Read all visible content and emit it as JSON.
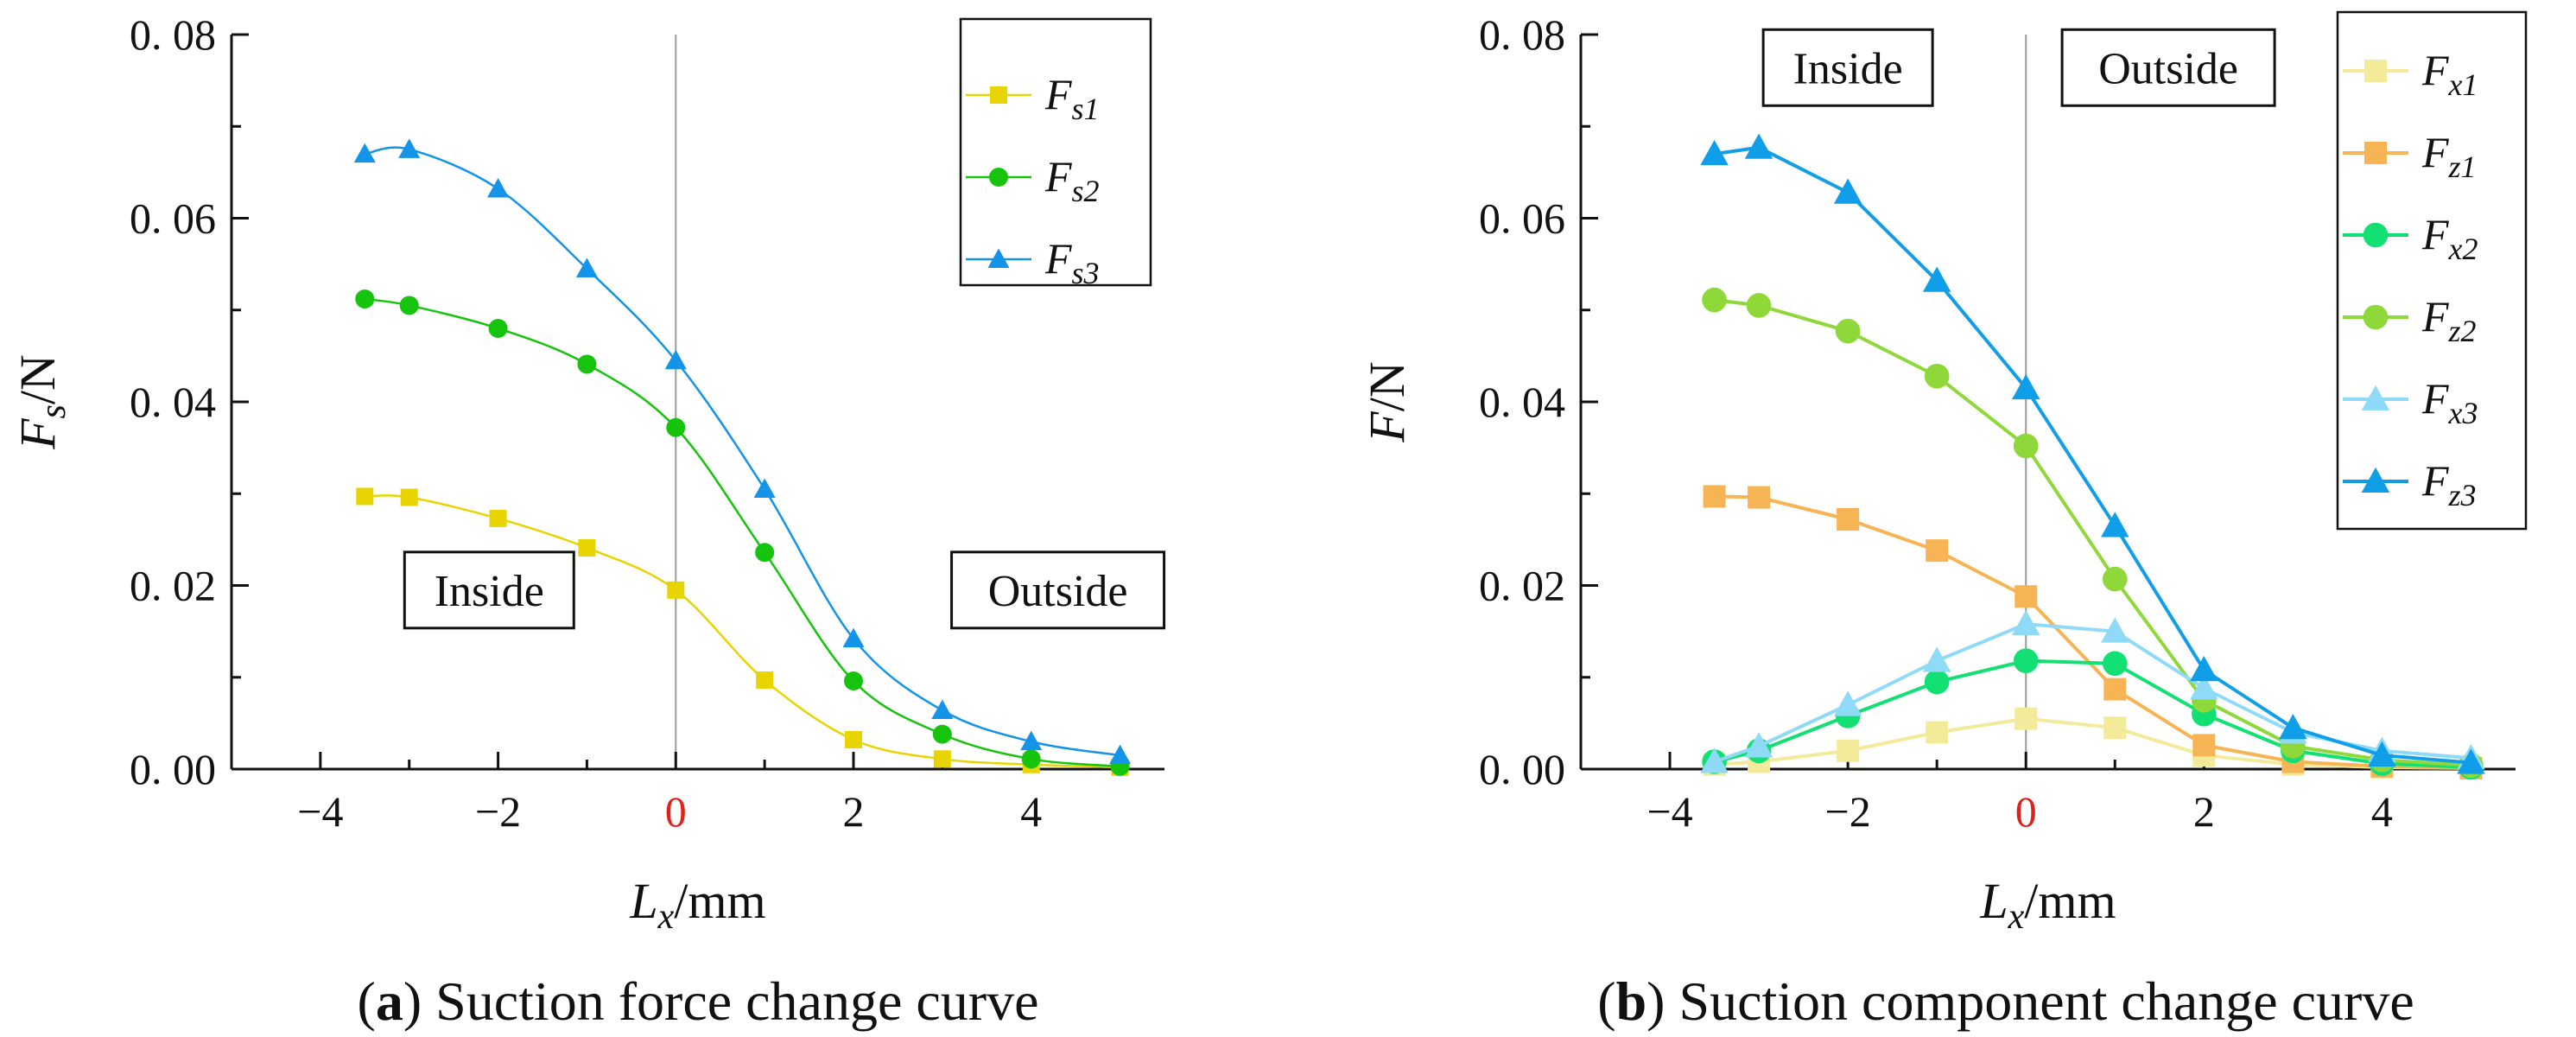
{
  "chart_data": [
    {
      "type": "line",
      "caption_letter": "a",
      "caption_text": " Suction force change curve",
      "xlabel_main": "L",
      "xlabel_sub": "x",
      "xlabel_unit": "/mm",
      "ylabel_main": "F",
      "ylabel_sub": "s",
      "ylabel_unit": "/N",
      "xlim": [
        -5,
        5.5
      ],
      "ylim": [
        0,
        0.08
      ],
      "xticks": [
        -4,
        -2,
        0,
        2,
        4
      ],
      "xtick_labels": [
        "−4",
        "−2",
        "0",
        "2",
        "4"
      ],
      "highlight_tick": "0",
      "highlight_color": "#e0201b",
      "yticks": [
        0,
        0.02,
        0.04,
        0.06,
        0.08
      ],
      "ytick_labels": [
        "0. 00",
        "0. 02",
        "0. 04",
        "0. 06",
        "0. 08"
      ],
      "vertical_line_x": 0,
      "smooth": true,
      "legend_position": "top-right",
      "annotations": [
        {
          "text": "Inside",
          "x": -2.1,
          "y": 0.0195
        },
        {
          "text": "Outside",
          "x": 4.3,
          "y": 0.0195
        }
      ],
      "series": [
        {
          "name": "F",
          "sub": "s1",
          "color": "#e8d400",
          "marker": "square",
          "x": [
            -3.5,
            -3,
            -2,
            -1,
            0,
            1,
            2,
            3,
            4,
            5
          ],
          "y": [
            0.0297,
            0.0296,
            0.0273,
            0.0241,
            0.0195,
            0.0097,
            0.0032,
            0.0011,
            0.0005,
            0.0002
          ]
        },
        {
          "name": "F",
          "sub": "s2",
          "color": "#16c40e",
          "marker": "circle",
          "x": [
            -3.5,
            -3,
            -2,
            -1,
            0,
            1,
            2,
            3,
            4,
            5
          ],
          "y": [
            0.0512,
            0.0505,
            0.048,
            0.0441,
            0.0372,
            0.0236,
            0.0096,
            0.0038,
            0.0011,
            0.0003
          ]
        },
        {
          "name": "F",
          "sub": "s3",
          "color": "#1494e8",
          "marker": "triangle",
          "x": [
            -3.5,
            -3,
            -2,
            -1,
            0,
            1,
            2,
            3,
            4,
            5
          ],
          "y": [
            0.067,
            0.0675,
            0.0632,
            0.0545,
            0.0445,
            0.0305,
            0.0142,
            0.0064,
            0.003,
            0.0015
          ]
        }
      ]
    },
    {
      "type": "line",
      "caption_letter": "b",
      "caption_text": " Suction component change curve",
      "xlabel_main": "L",
      "xlabel_sub": "x",
      "xlabel_unit": "/mm",
      "ylabel_main": "F",
      "ylabel_sub": "",
      "ylabel_unit": "/N",
      "xlim": [
        -5,
        5.5
      ],
      "ylim": [
        0,
        0.08
      ],
      "xticks": [
        -4,
        -2,
        0,
        2,
        4
      ],
      "xtick_labels": [
        "−4",
        "−2",
        "0",
        "2",
        "4"
      ],
      "highlight_tick": "0",
      "highlight_color": "#e0201b",
      "yticks": [
        0,
        0.02,
        0.04,
        0.06,
        0.08
      ],
      "ytick_labels": [
        "0. 00",
        "0. 02",
        "0. 04",
        "0. 06",
        "0. 08"
      ],
      "vertical_line_x": 0,
      "smooth": false,
      "legend_position": "top-right",
      "annotations": [
        {
          "text": "Inside",
          "x": -2.0,
          "y": 0.0764
        },
        {
          "text": "Outside",
          "x": 1.6,
          "y": 0.0764
        }
      ],
      "series": [
        {
          "name": "F",
          "sub": "x1",
          "color": "#f4eb9a",
          "marker": "square",
          "x": [
            -3.5,
            -3,
            -2,
            -1,
            0,
            1,
            2,
            3,
            4,
            5
          ],
          "y": [
            0.0005,
            0.0008,
            0.002,
            0.004,
            0.0055,
            0.0045,
            0.0015,
            0.0005,
            0.0002,
            0.0001
          ]
        },
        {
          "name": "F",
          "sub": "z1",
          "color": "#f7b454",
          "marker": "square",
          "x": [
            -3.5,
            -3,
            -2,
            -1,
            0,
            1,
            2,
            3,
            4,
            5
          ],
          "y": [
            0.0297,
            0.0296,
            0.0272,
            0.0238,
            0.0188,
            0.0087,
            0.0026,
            0.0008,
            0.0003,
            0.0001
          ]
        },
        {
          "name": "F",
          "sub": "x2",
          "color": "#12e072",
          "marker": "circle",
          "x": [
            -3.5,
            -3,
            -2,
            -1,
            0,
            1,
            2,
            3,
            4,
            5
          ],
          "y": [
            0.0008,
            0.002,
            0.0058,
            0.0095,
            0.0118,
            0.0115,
            0.006,
            0.002,
            0.0006,
            0.0002
          ]
        },
        {
          "name": "F",
          "sub": "z2",
          "color": "#8ed83a",
          "marker": "circle",
          "x": [
            -3.5,
            -3,
            -2,
            -1,
            0,
            1,
            2,
            3,
            4,
            5
          ],
          "y": [
            0.0511,
            0.0505,
            0.0477,
            0.0428,
            0.0352,
            0.0207,
            0.0075,
            0.0025,
            0.001,
            0.0004
          ]
        },
        {
          "name": "F",
          "sub": "x3",
          "color": "#8fdaf6",
          "marker": "triangle",
          "x": [
            -3.5,
            -3,
            -2,
            -1,
            0,
            1,
            2,
            3,
            4,
            5
          ],
          "y": [
            0.0008,
            0.0025,
            0.007,
            0.0118,
            0.0158,
            0.015,
            0.0088,
            0.004,
            0.002,
            0.0012
          ]
        },
        {
          "name": "F",
          "sub": "z3",
          "color": "#109ee8",
          "marker": "triangle",
          "x": [
            -3.5,
            -3,
            -2,
            -1,
            0,
            1,
            2,
            3,
            4,
            5
          ],
          "y": [
            0.067,
            0.0677,
            0.0628,
            0.0532,
            0.0415,
            0.0265,
            0.0108,
            0.0045,
            0.0015,
            0.0007
          ]
        }
      ]
    }
  ]
}
